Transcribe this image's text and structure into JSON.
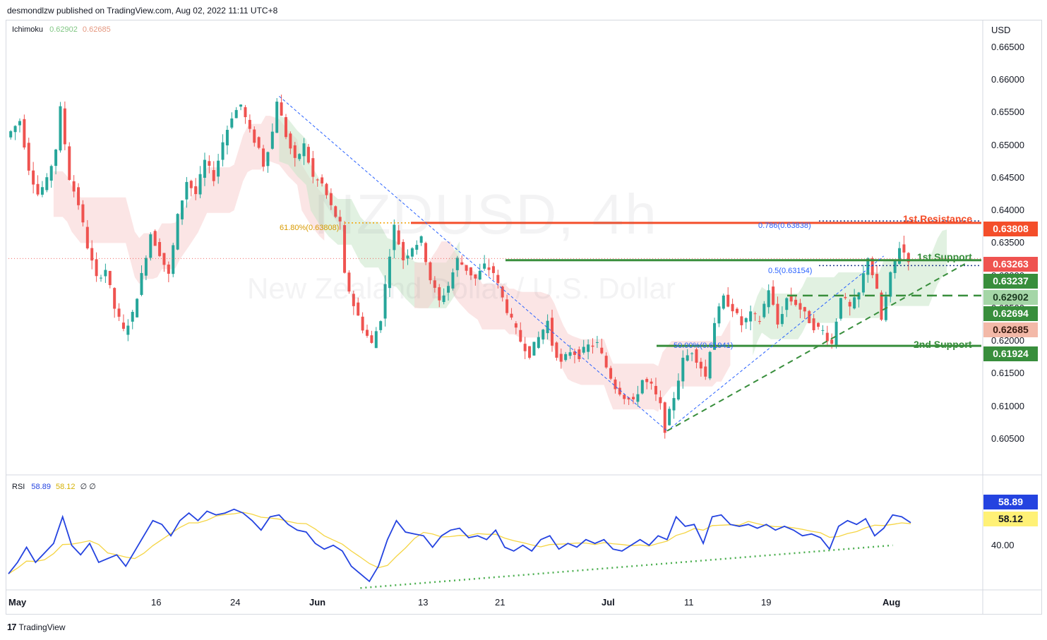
{
  "publisher_line": "desmondlzw published on TradingView.com, Aug 02, 2022 11:11 UTC+8",
  "watermark": {
    "symbol": "NZDUSD, 4h",
    "description": "New Zealand Dollar / U.S. Dollar"
  },
  "footer": {
    "brand": "TradingView"
  },
  "colors": {
    "bull": "#26a69a",
    "bear": "#ef5350",
    "resistance": "#f44e2a",
    "support": "#388e3c",
    "rsi": "#2443e0",
    "rsi_ma": "#f5d544",
    "cloud_bull": "#c8e6c9",
    "cloud_bear": "#f8d0d0",
    "fib_line": "#2962ff"
  },
  "chart_data": {
    "type": "candlestick",
    "symbol": "NZDUSD",
    "timeframe": "4h",
    "currency": "USD",
    "ylim": [
      0.6,
      0.669
    ],
    "x_ticks": [
      "May",
      "16",
      "24",
      "Jun",
      "13",
      "21",
      "Jul",
      "11",
      "19",
      "Aug"
    ],
    "y_ticks": [
      "0.66500",
      "0.66000",
      "0.65500",
      "0.65000",
      "0.64500",
      "0.64000",
      "0.63500",
      "0.63000",
      "0.62500",
      "0.62000",
      "0.61500",
      "0.61000",
      "0.60500"
    ],
    "price_path": [
      [
        0,
        0.6512
      ],
      [
        3,
        0.6538
      ],
      [
        5,
        0.6465
      ],
      [
        7,
        0.6425
      ],
      [
        9,
        0.6445
      ],
      [
        11,
        0.6495
      ],
      [
        12,
        0.6555
      ],
      [
        14,
        0.645
      ],
      [
        16,
        0.641
      ],
      [
        18,
        0.6345
      ],
      [
        20,
        0.6295
      ],
      [
        22,
        0.631
      ],
      [
        24,
        0.625
      ],
      [
        26,
        0.6215
      ],
      [
        28,
        0.624
      ],
      [
        30,
        0.63
      ],
      [
        32,
        0.6365
      ],
      [
        34,
        0.6335
      ],
      [
        36,
        0.63
      ],
      [
        38,
        0.639
      ],
      [
        40,
        0.6445
      ],
      [
        42,
        0.6425
      ],
      [
        44,
        0.6475
      ],
      [
        46,
        0.645
      ],
      [
        48,
        0.6505
      ],
      [
        50,
        0.6545
      ],
      [
        52,
        0.6562
      ],
      [
        54,
        0.652
      ],
      [
        56,
        0.6495
      ],
      [
        57,
        0.647
      ],
      [
        59,
        0.652
      ],
      [
        60,
        0.657
      ],
      [
        62,
        0.6515
      ],
      [
        64,
        0.6475
      ],
      [
        66,
        0.65
      ],
      [
        68,
        0.645
      ],
      [
        70,
        0.644
      ],
      [
        72,
        0.6405
      ],
      [
        74,
        0.6378
      ],
      [
        75,
        0.63
      ],
      [
        77,
        0.6255
      ],
      [
        79,
        0.622
      ],
      [
        81,
        0.6195
      ],
      [
        83,
        0.6235
      ],
      [
        85,
        0.6335
      ],
      [
        86,
        0.6375
      ],
      [
        88,
        0.6325
      ],
      [
        90,
        0.6345
      ],
      [
        92,
        0.6355
      ],
      [
        94,
        0.6295
      ],
      [
        96,
        0.626
      ],
      [
        98,
        0.6285
      ],
      [
        100,
        0.6325
      ],
      [
        102,
        0.631
      ],
      [
        104,
        0.6295
      ],
      [
        106,
        0.6315
      ],
      [
        108,
        0.6305
      ],
      [
        110,
        0.6265
      ],
      [
        112,
        0.623
      ],
      [
        114,
        0.62
      ],
      [
        116,
        0.618
      ],
      [
        118,
        0.6205
      ],
      [
        120,
        0.623
      ],
      [
        121,
        0.6195
      ],
      [
        123,
        0.6165
      ],
      [
        125,
        0.6185
      ],
      [
        127,
        0.6178
      ],
      [
        129,
        0.6192
      ],
      [
        131,
        0.6195
      ],
      [
        133,
        0.616
      ],
      [
        135,
        0.613
      ],
      [
        137,
        0.6115
      ],
      [
        139,
        0.6105
      ],
      [
        141,
        0.614
      ],
      [
        143,
        0.613
      ],
      [
        145,
        0.61
      ],
      [
        146,
        0.6065
      ],
      [
        148,
        0.6115
      ],
      [
        150,
        0.617
      ],
      [
        152,
        0.6185
      ],
      [
        154,
        0.616
      ],
      [
        155,
        0.6145
      ],
      [
        157,
        0.623
      ],
      [
        159,
        0.6265
      ],
      [
        161,
        0.625
      ],
      [
        163,
        0.6225
      ],
      [
        165,
        0.624
      ],
      [
        167,
        0.6232
      ],
      [
        169,
        0.628
      ],
      [
        171,
        0.6225
      ],
      [
        173,
        0.6265
      ],
      [
        175,
        0.6258
      ],
      [
        177,
        0.624
      ],
      [
        179,
        0.6222
      ],
      [
        181,
        0.6215
      ],
      [
        183,
        0.6195
      ],
      [
        185,
        0.627
      ],
      [
        187,
        0.625
      ],
      [
        189,
        0.6272
      ],
      [
        191,
        0.633
      ],
      [
        193,
        0.6275
      ],
      [
        194,
        0.6232
      ],
      [
        196,
        0.63
      ],
      [
        198,
        0.6345
      ],
      [
        200,
        0.6326
      ]
    ],
    "levels": [
      {
        "label": "1st Resistance",
        "price": 0.63808,
        "tag": "0.63808"
      },
      {
        "label": "1st Support",
        "price": 0.63237,
        "tag": "0.63237"
      },
      {
        "label": "2nd Support",
        "price": 0.61924,
        "tag": "0.61924"
      }
    ],
    "last_price": {
      "price": 0.63263,
      "tag": "0.63263"
    },
    "ichimoku": {
      "name": "Ichimoku",
      "value_a": "0.62902",
      "value_b": "0.62685"
    },
    "other_tags": [
      "0.62694"
    ],
    "fib_labels": [
      "61.80%(0.63808)",
      "0.786(0.63838)",
      "0.5(0.63154)",
      "50.00%(0.61941)"
    ],
    "rsi": {
      "name": "RSI",
      "value": "58.89",
      "ma_value": "58.12",
      "extra": "∅ ∅",
      "tick": "40.00",
      "ylim": [
        25,
        80
      ],
      "path": [
        [
          0,
          32
        ],
        [
          2,
          38
        ],
        [
          4,
          46
        ],
        [
          6,
          38
        ],
        [
          8,
          43
        ],
        [
          10,
          48
        ],
        [
          12,
          62
        ],
        [
          14,
          47
        ],
        [
          16,
          42
        ],
        [
          18,
          48
        ],
        [
          20,
          38
        ],
        [
          22,
          40
        ],
        [
          24,
          42
        ],
        [
          26,
          36
        ],
        [
          28,
          44
        ],
        [
          30,
          52
        ],
        [
          32,
          60
        ],
        [
          34,
          58
        ],
        [
          36,
          52
        ],
        [
          38,
          60
        ],
        [
          40,
          64
        ],
        [
          42,
          60
        ],
        [
          44,
          65
        ],
        [
          46,
          63
        ],
        [
          48,
          64
        ],
        [
          50,
          66
        ],
        [
          52,
          64
        ],
        [
          54,
          60
        ],
        [
          56,
          55
        ],
        [
          58,
          62
        ],
        [
          60,
          63
        ],
        [
          62,
          58
        ],
        [
          64,
          55
        ],
        [
          66,
          54
        ],
        [
          68,
          48
        ],
        [
          70,
          45
        ],
        [
          72,
          47
        ],
        [
          74,
          44
        ],
        [
          76,
          36
        ],
        [
          78,
          32
        ],
        [
          80,
          28
        ],
        [
          82,
          36
        ],
        [
          84,
          50
        ],
        [
          86,
          60
        ],
        [
          88,
          54
        ],
        [
          90,
          53
        ],
        [
          92,
          52
        ],
        [
          94,
          46
        ],
        [
          96,
          52
        ],
        [
          98,
          55
        ],
        [
          100,
          56
        ],
        [
          102,
          51
        ],
        [
          104,
          52
        ],
        [
          106,
          50
        ],
        [
          108,
          55
        ],
        [
          110,
          46
        ],
        [
          112,
          44
        ],
        [
          114,
          47
        ],
        [
          116,
          44
        ],
        [
          118,
          50
        ],
        [
          120,
          52
        ],
        [
          122,
          45
        ],
        [
          124,
          48
        ],
        [
          126,
          46
        ],
        [
          128,
          50
        ],
        [
          130,
          48
        ],
        [
          132,
          50
        ],
        [
          134,
          45
        ],
        [
          136,
          44
        ],
        [
          138,
          47
        ],
        [
          140,
          50
        ],
        [
          142,
          47
        ],
        [
          144,
          52
        ],
        [
          146,
          50
        ],
        [
          148,
          62
        ],
        [
          150,
          57
        ],
        [
          152,
          58
        ],
        [
          154,
          48
        ],
        [
          156,
          62
        ],
        [
          158,
          63
        ],
        [
          160,
          58
        ],
        [
          162,
          57
        ],
        [
          164,
          58
        ],
        [
          166,
          56
        ],
        [
          168,
          58
        ],
        [
          170,
          55
        ],
        [
          172,
          57
        ],
        [
          174,
          55
        ],
        [
          176,
          52
        ],
        [
          178,
          53
        ],
        [
          180,
          51
        ],
        [
          182,
          45
        ],
        [
          184,
          57
        ],
        [
          186,
          60
        ],
        [
          188,
          58
        ],
        [
          190,
          61
        ],
        [
          192,
          52
        ],
        [
          194,
          56
        ],
        [
          196,
          63
        ],
        [
          198,
          62
        ],
        [
          200,
          58.89
        ]
      ]
    }
  }
}
